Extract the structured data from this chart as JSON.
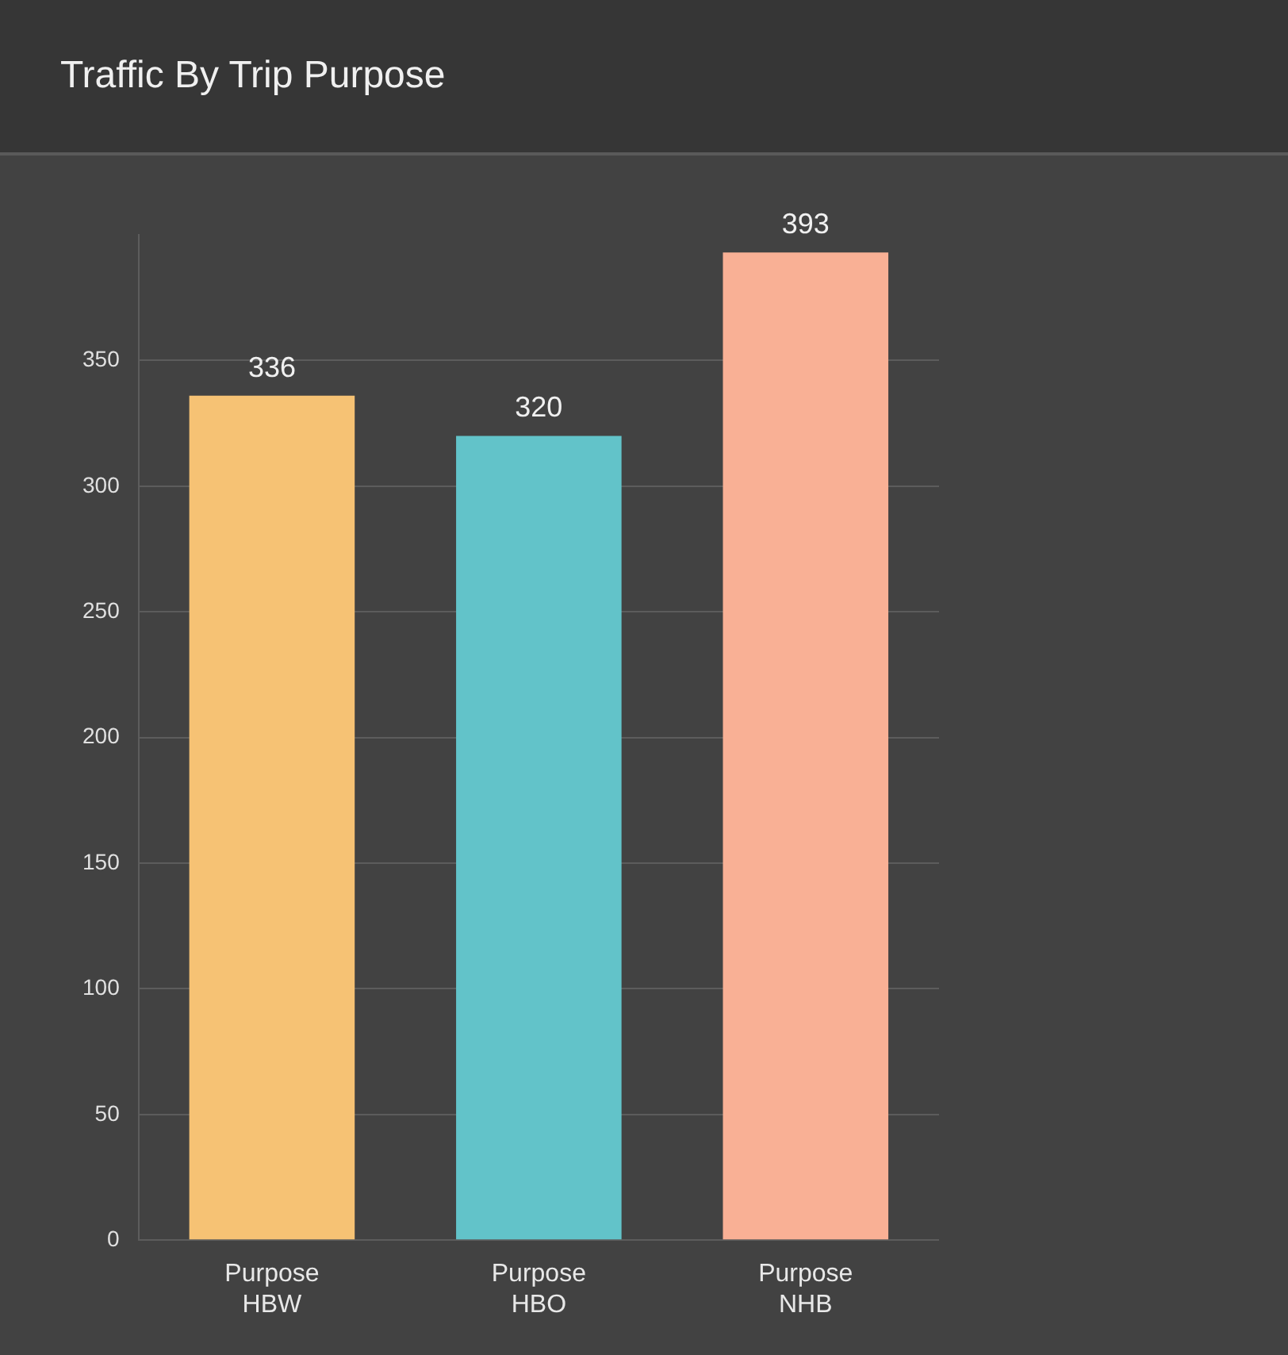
{
  "chart_data": {
    "type": "bar",
    "title": "Traffic By Trip Purpose",
    "categories": [
      "Purpose HBW",
      "Purpose HBO",
      "Purpose NHB"
    ],
    "values": [
      336,
      320,
      393
    ],
    "colors": [
      "#f6c274",
      "#62c3c9",
      "#f9b095"
    ],
    "ylim": [
      0,
      400
    ],
    "yticks": [
      0,
      50,
      100,
      150,
      200,
      250,
      300,
      350
    ],
    "grid": "y",
    "data_labels": true
  }
}
